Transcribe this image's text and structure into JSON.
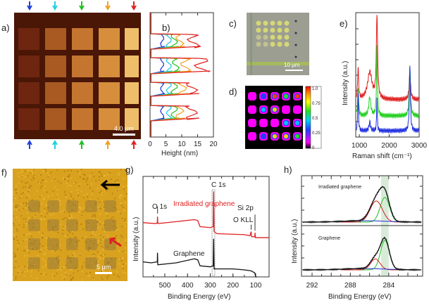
{
  "panels": {
    "a": {
      "label": "a)",
      "scale_bar": "4.0 µm",
      "arrow_colors": [
        "#2040e0",
        "#20d0e0",
        "#20c020",
        "#f0a020",
        "#e02020"
      ]
    },
    "b": {
      "label": "b)"
    },
    "c": {
      "label": "c)",
      "scale_bar": "10 µm"
    },
    "d": {
      "label": "d)",
      "colorbar_ticks": [
        "1.0",
        "0.75",
        "0.5",
        "0.25",
        "0"
      ]
    },
    "e": {
      "label": "e)"
    },
    "f": {
      "label": "f)",
      "scale_bar": "5 µm"
    },
    "g": {
      "label": "g)"
    },
    "h": {
      "label": "h)"
    }
  },
  "chart_data": [
    {
      "id": "b",
      "type": "line",
      "xlabel": "Height (nm)",
      "xlim": [
        0,
        20
      ],
      "xticks": [
        "0",
        "5",
        "10",
        "15",
        "20"
      ],
      "series": [
        {
          "color": "#2030d0",
          "plateau_heights": [
            4.5,
            4.5,
            4.5,
            4.5
          ]
        },
        {
          "color": "#20c8e0",
          "plateau_heights": [
            7,
            7,
            7,
            7
          ]
        },
        {
          "color": "#20c020",
          "plateau_heights": [
            9,
            9.5,
            9,
            9
          ]
        },
        {
          "color": "#f0a020",
          "plateau_heights": [
            11,
            13,
            12,
            11
          ]
        },
        {
          "color": "#e02020",
          "plateau_heights": [
            16,
            19,
            15.5,
            15.5
          ]
        }
      ]
    },
    {
      "id": "e",
      "type": "line",
      "xlabel": "Raman shift (cm⁻¹)",
      "ylabel": "Intensity (a.u.)",
      "xlim": [
        880,
        3000
      ],
      "ylim": [
        0,
        1
      ],
      "xticks": [
        "1000",
        "2000",
        "3000"
      ],
      "series": [
        {
          "color": "#e02020",
          "base": 0.3,
          "peaks": [
            [
              960,
              0.25,
              20
            ],
            [
              1350,
              0.22,
              90
            ],
            [
              1590,
              0.67,
              25
            ],
            [
              2690,
              0.2,
              30
            ]
          ]
        },
        {
          "color": "#20d020",
          "base": 0.17,
          "peaks": [
            [
              960,
              0.22,
              20
            ],
            [
              1350,
              0.15,
              40
            ],
            [
              1590,
              0.55,
              18
            ],
            [
              2690,
              0.38,
              25
            ]
          ]
        },
        {
          "color": "#2030e0",
          "base": 0.05,
          "peaks": [
            [
              960,
              0.3,
              15
            ],
            [
              1350,
              0.07,
              30
            ],
            [
              1590,
              0.28,
              12
            ],
            [
              2690,
              0.53,
              20
            ]
          ]
        }
      ]
    },
    {
      "id": "g",
      "type": "line",
      "xlabel": "Binding Energy (eV)",
      "ylabel": "Intensity (a.u.)",
      "xlim": [
        596,
        41
      ],
      "ylim": [
        0,
        1
      ],
      "xticks": [
        "500",
        "400",
        "300",
        "200",
        "100"
      ],
      "annotations": [
        "O 1s",
        "C 1s",
        "Si 2p",
        "O KLL"
      ],
      "series": [
        {
          "name": "Irradiated graphene",
          "color": "#e02020",
          "points": [
            [
              596,
              0.54
            ],
            [
              540,
              0.53
            ],
            [
              533,
              0.54
            ],
            [
              532,
              0.6
            ],
            [
              531,
              0.53
            ],
            [
              450,
              0.55
            ],
            [
              370,
              0.57
            ],
            [
              355,
              0.56
            ],
            [
              345,
              0.5
            ],
            [
              300,
              0.49
            ],
            [
              287,
              0.5
            ],
            [
              285,
              0.85
            ],
            [
              283,
              0.45
            ],
            [
              270,
              0.43
            ],
            [
              150,
              0.42
            ],
            [
              125,
              0.41
            ],
            [
              120,
              0.45
            ],
            [
              118,
              0.4
            ],
            [
              104,
              0.4
            ],
            [
              103,
              0.44
            ],
            [
              101,
              0.39
            ],
            [
              41,
              0.39
            ]
          ]
        },
        {
          "name": "Graphene",
          "color": "#111111",
          "points": [
            [
              596,
              0.15
            ],
            [
              560,
              0.14
            ],
            [
              533,
              0.15
            ],
            [
              532,
              0.24
            ],
            [
              531,
              0.12
            ],
            [
              450,
              0.14
            ],
            [
              370,
              0.18
            ],
            [
              355,
              0.17
            ],
            [
              345,
              0.11
            ],
            [
              300,
              0.1
            ],
            [
              287,
              0.11
            ],
            [
              285,
              0.38
            ],
            [
              283,
              0.08
            ],
            [
              200,
              0.08
            ],
            [
              150,
              0.07
            ],
            [
              120,
              0.06
            ],
            [
              104,
              0.04
            ],
            [
              100,
              0.0
            ],
            [
              95,
              0.0
            ]
          ]
        }
      ]
    },
    {
      "id": "h",
      "type": "line",
      "xlabel": "Binding Energy (eV)",
      "ylabel": "Intensity (a.u.)",
      "xlim": [
        293.1,
        280.5
      ],
      "xticks": [
        "292",
        "288",
        "284"
      ],
      "highlight_band": [
        284.0,
        284.8
      ],
      "subplots": [
        {
          "title": "Irradiated graphene",
          "components": [
            {
              "color": "#20c020",
              "center": 284.4,
              "height": 0.55,
              "width": 0.7
            },
            {
              "color": "#d02020",
              "center": 285.3,
              "height": 0.47,
              "width": 0.9
            },
            {
              "color": "#2030d0",
              "center": 286.5,
              "height": 0.03,
              "width": 3.0
            }
          ],
          "envelope_color": "#111111"
        },
        {
          "title": "Graphene",
          "components": [
            {
              "color": "#20c020",
              "center": 284.4,
              "height": 0.68,
              "width": 0.65
            },
            {
              "color": "#d02020",
              "center": 285.4,
              "height": 0.25,
              "width": 0.7
            },
            {
              "color": "#2030d0",
              "center": 286.5,
              "height": 0.03,
              "width": 3.0
            }
          ],
          "envelope_color": "#111111"
        }
      ]
    }
  ]
}
